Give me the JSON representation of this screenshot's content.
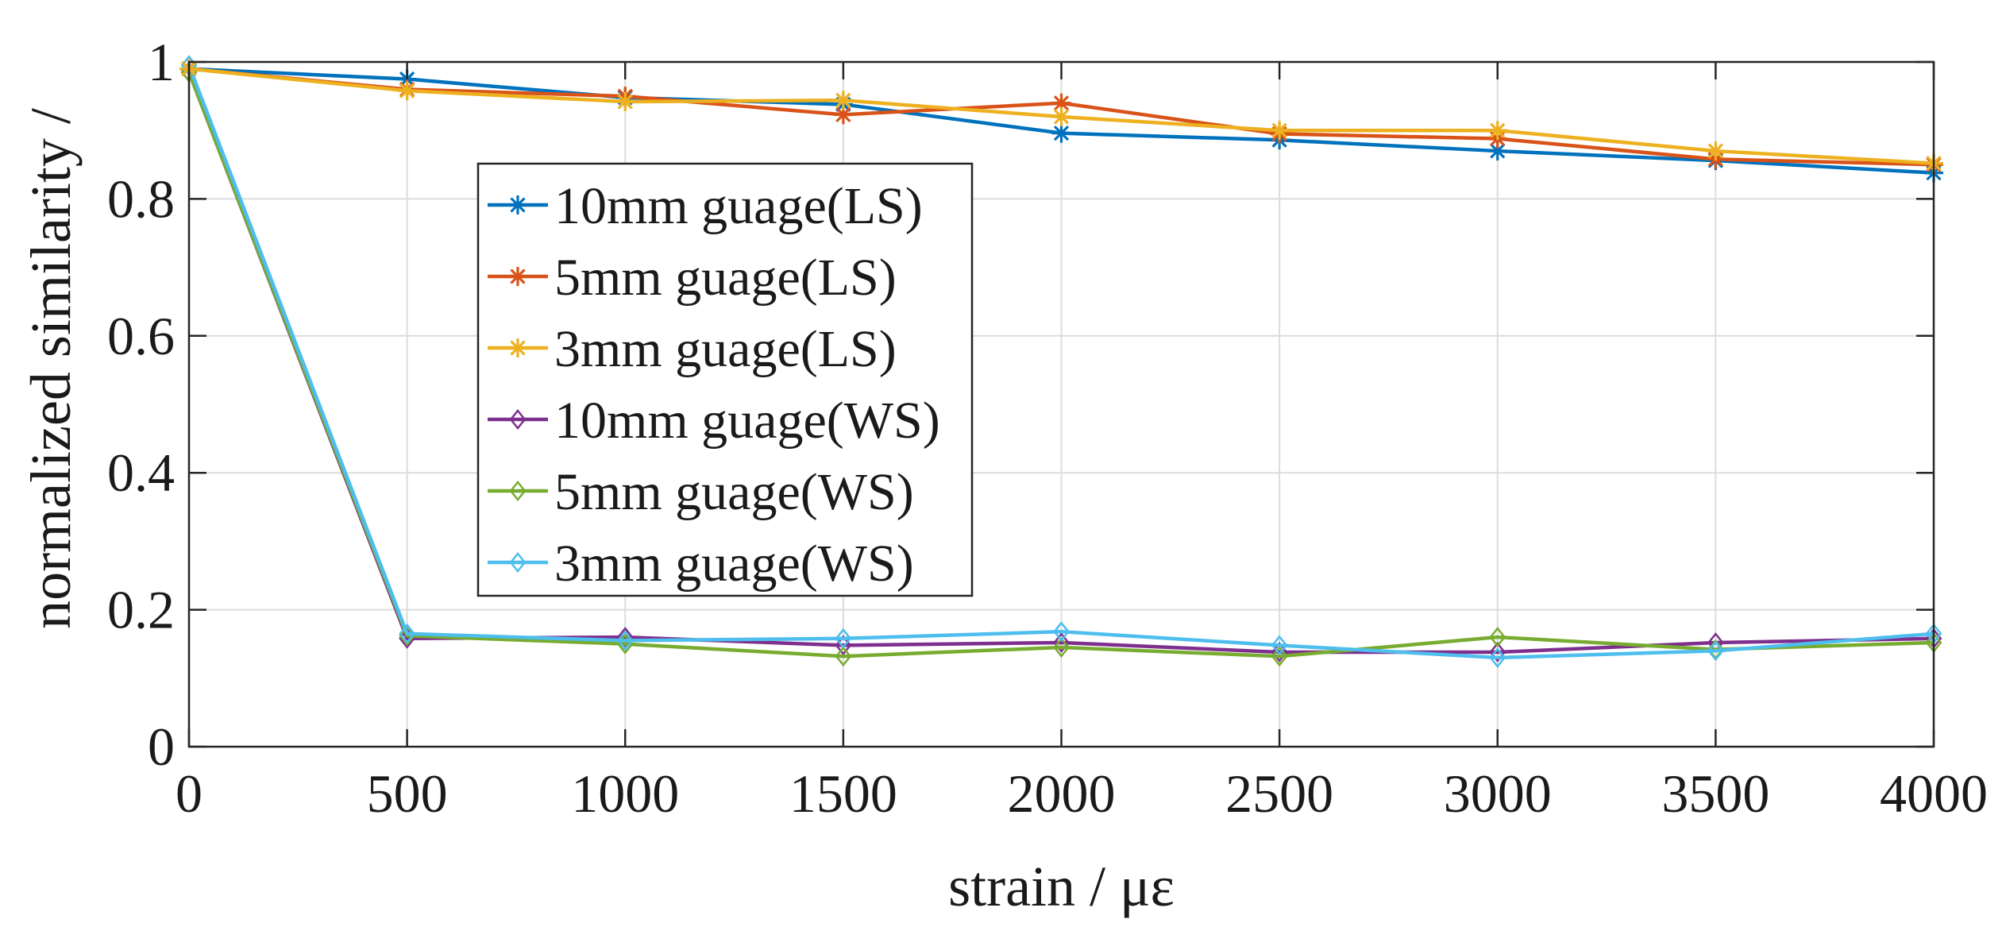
{
  "chart_data": {
    "type": "line",
    "title": "",
    "xlabel": "strain / με",
    "ylabel": "normalized similarity /",
    "xlim": [
      0,
      4000
    ],
    "ylim": [
      0,
      1
    ],
    "x": [
      0,
      500,
      1000,
      1500,
      2000,
      2500,
      3000,
      3500,
      4000
    ],
    "xticks": [
      0,
      500,
      1000,
      1500,
      2000,
      2500,
      3000,
      3500,
      4000
    ],
    "yticks": [
      0,
      0.2,
      0.4,
      0.6,
      0.8,
      1
    ],
    "xtick_labels": [
      "0",
      "500",
      "1000",
      "1500",
      "2000",
      "2500",
      "3000",
      "3500",
      "4000"
    ],
    "ytick_labels": [
      "0",
      "0.2",
      "0.4",
      "0.6",
      "0.8",
      "1"
    ],
    "grid": true,
    "legend_position": "center-left",
    "series": [
      {
        "name": "10mm guage(LS)",
        "color": "#0072BD",
        "marker": "star",
        "values": [
          0.99,
          0.975,
          0.948,
          0.938,
          0.896,
          0.886,
          0.87,
          0.856,
          0.838
        ]
      },
      {
        "name": "5mm guage(LS)",
        "color": "#D95319",
        "marker": "star",
        "values": [
          0.99,
          0.96,
          0.95,
          0.923,
          0.94,
          0.895,
          0.888,
          0.858,
          0.85
        ]
      },
      {
        "name": "3mm guage(LS)",
        "color": "#EDB120",
        "marker": "star",
        "values": [
          0.99,
          0.958,
          0.942,
          0.944,
          0.92,
          0.9,
          0.9,
          0.87,
          0.852
        ]
      },
      {
        "name": "10mm guage(WS)",
        "color": "#7E2F8E",
        "marker": "diamond",
        "values": [
          0.985,
          0.158,
          0.16,
          0.148,
          0.152,
          0.138,
          0.138,
          0.152,
          0.158
        ]
      },
      {
        "name": "5mm guage(WS)",
        "color": "#77AC30",
        "marker": "diamond",
        "values": [
          0.985,
          0.162,
          0.15,
          0.132,
          0.145,
          0.132,
          0.16,
          0.142,
          0.152
        ]
      },
      {
        "name": "3mm guage(WS)",
        "color": "#4DBEEE",
        "marker": "diamond",
        "values": [
          0.995,
          0.165,
          0.155,
          0.158,
          0.168,
          0.148,
          0.13,
          0.14,
          0.165
        ]
      }
    ]
  }
}
